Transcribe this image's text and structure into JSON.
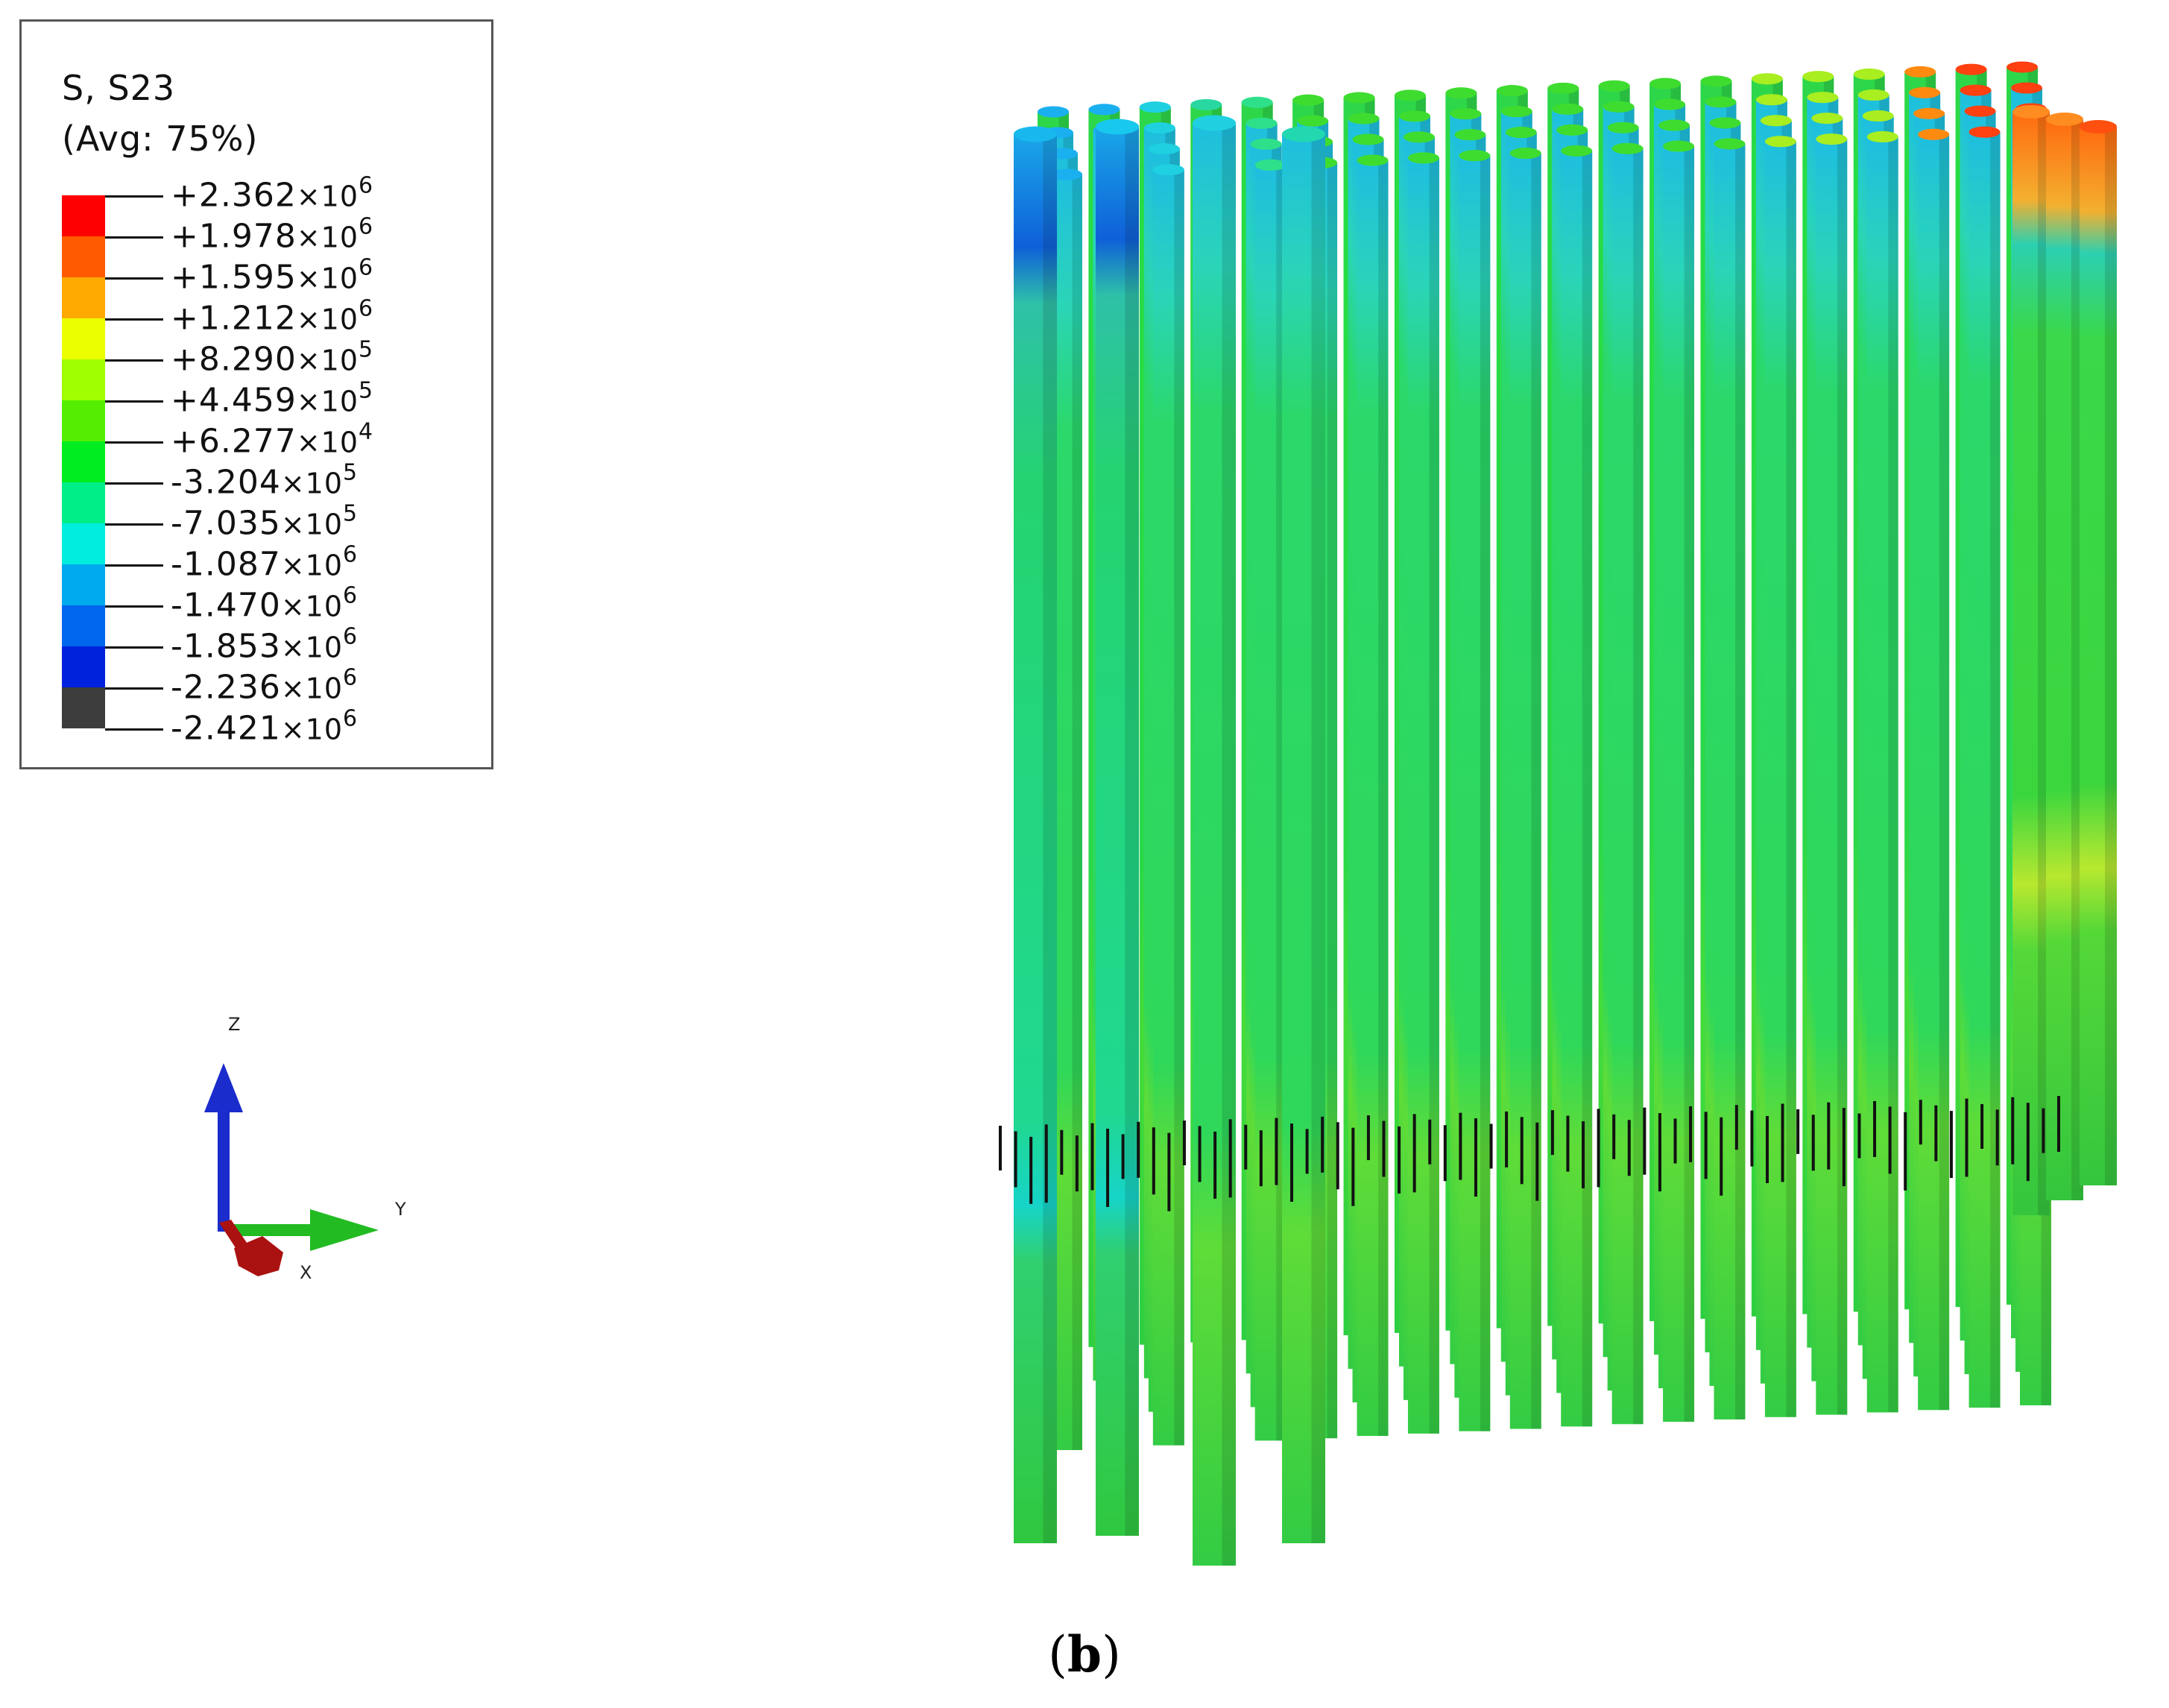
{
  "legend": {
    "title": "S, S23",
    "subtitle": "(Avg: 75%)",
    "times_sign": "×",
    "levels": [
      {
        "mantissa": "+2.362",
        "exp": "6",
        "color": "#ff0000"
      },
      {
        "mantissa": "+1.978",
        "exp": "6",
        "color": "#ff5a00"
      },
      {
        "mantissa": "+1.595",
        "exp": "6",
        "color": "#ffaa00"
      },
      {
        "mantissa": "+1.212",
        "exp": "6",
        "color": "#ecff00"
      },
      {
        "mantissa": "+8.290",
        "exp": "5",
        "color": "#a0ff00"
      },
      {
        "mantissa": "+4.459",
        "exp": "5",
        "color": "#55ee00"
      },
      {
        "mantissa": "+6.277",
        "exp": "4",
        "color": "#00ee20"
      },
      {
        "mantissa": "-3.204",
        "exp": "5",
        "color": "#00ee88"
      },
      {
        "mantissa": "-7.035",
        "exp": "5",
        "color": "#00eedd"
      },
      {
        "mantissa": "-1.087",
        "exp": "6",
        "color": "#00aaee"
      },
      {
        "mantissa": "-1.470",
        "exp": "6",
        "color": "#0066ee"
      },
      {
        "mantissa": "-1.853",
        "exp": "6",
        "color": "#0022dd"
      },
      {
        "mantissa": "-2.236",
        "exp": "6",
        "color": "#0000ee"
      },
      {
        "mantissa": "-2.421",
        "exp": "6",
        "color": "#3c3c3c"
      }
    ]
  },
  "triad": {
    "z_label": "Z",
    "y_label": "Y",
    "x_label": "X",
    "z_color": "#1a2ccc",
    "y_color": "#22bb22",
    "x_color": "#aa1111"
  },
  "caption": {
    "open": "(",
    "letter": "b",
    "close": ")"
  }
}
